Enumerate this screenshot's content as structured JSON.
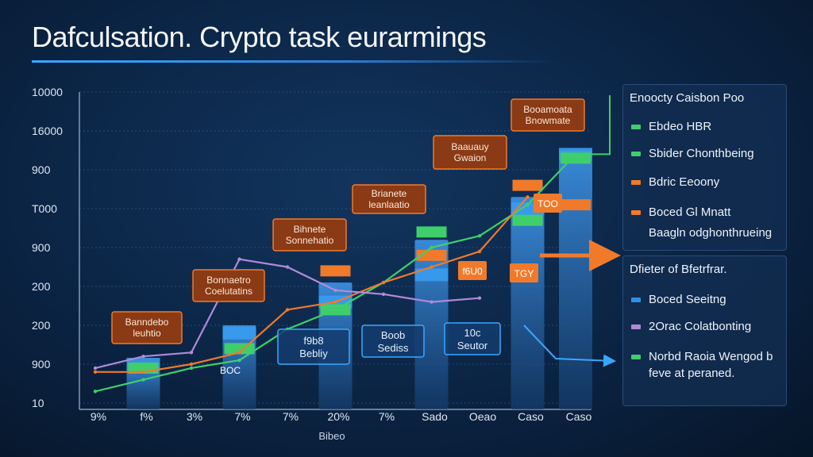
{
  "title": "Dafculsation. Crypto task eurarmings",
  "chart_data": {
    "type": "bar",
    "title": "Dafculsation. Crypto task eurarmings",
    "xlabel": "Bibeo",
    "ylabel": "",
    "y_tick_labels": [
      "10",
      "900",
      "200",
      "200",
      "900",
      "T000",
      "900",
      "16000",
      "10000"
    ],
    "categories": [
      "9%",
      "f%",
      "3%",
      "7%",
      "7%",
      "20%",
      "7%",
      "Sado",
      "Oeao",
      "Caso",
      "Caso"
    ],
    "bar_groups": [
      {
        "index": 1,
        "stack_top": 1.0,
        "blue_marker": 1.0,
        "green_marker": 0.9,
        "orange_marker": null
      },
      {
        "index": 3,
        "stack_top": 2.0,
        "blue_marker": 1.8,
        "green_marker": 1.4,
        "orange_marker": null
      },
      {
        "index": 5,
        "stack_top": 3.1,
        "blue_marker": 2.6,
        "green_marker": 2.4,
        "orange_marker": 3.4
      },
      {
        "index": 7,
        "stack_top": 4.2,
        "blue_marker": 3.3,
        "green_marker": 4.4,
        "orange_marker": 3.8
      },
      {
        "index": 9,
        "stack_top": 5.3,
        "blue_marker": 5.0,
        "green_marker": 4.7,
        "orange_marker": 5.6
      },
      {
        "index": 10,
        "stack_top": 6.5,
        "blue_marker": 6.4,
        "green_marker": 6.3,
        "orange_marker": 5.1
      }
    ],
    "series": [
      {
        "name": "Ebdeo HBR",
        "color": "#3fcf6a",
        "x": [
          0,
          1,
          2,
          3,
          4,
          5,
          6,
          7,
          8,
          9,
          10
        ],
        "y": [
          0.3,
          0.6,
          0.9,
          1.1,
          1.9,
          2.4,
          3.1,
          4.0,
          4.3,
          5.1,
          6.4
        ]
      },
      {
        "name": "Bdric Eeoony",
        "color": "#f07a2a",
        "x": [
          0,
          1,
          2,
          3,
          4,
          5,
          6,
          7,
          8,
          9
        ],
        "y": [
          0.8,
          0.8,
          1.0,
          1.3,
          2.4,
          2.6,
          3.1,
          3.5,
          3.9,
          5.3
        ]
      },
      {
        "name": "2Orac Colatbonting",
        "color": "#b08ad8",
        "x": [
          0,
          1,
          2,
          3,
          4,
          5,
          6,
          7,
          8
        ],
        "y": [
          0.9,
          1.2,
          1.3,
          3.7,
          3.5,
          2.9,
          2.8,
          2.6,
          2.7
        ]
      }
    ],
    "annotations": [
      {
        "text": "Banndebo leuhtio",
        "style": "orange"
      },
      {
        "text": "Bonnaetro Coelutatins",
        "style": "orange"
      },
      {
        "text": "Bihnete Sonnehatio",
        "style": "orange"
      },
      {
        "text": "Brianete leanlaatio",
        "style": "orange"
      },
      {
        "text": "Baauauy Gwaion",
        "style": "orange"
      },
      {
        "text": "Booamoata Bnowmate",
        "style": "orange"
      },
      {
        "text": "BOC",
        "style": "inline"
      },
      {
        "text": "f9b8 Bebliy",
        "style": "blue"
      },
      {
        "text": "Boob Sediss",
        "style": "blue"
      },
      {
        "text": "10c Seutor",
        "style": "blue"
      },
      {
        "text": "f6U0",
        "style": "orange-inline"
      },
      {
        "text": "TOO",
        "style": "orange-inline"
      },
      {
        "text": "TGY",
        "style": "orange-inline"
      }
    ],
    "grid": true,
    "legend_position": "right"
  },
  "legend_top": {
    "title": "Enoocty Caisbon Poo",
    "items": [
      {
        "label": "Ebdeo HBR",
        "color": "#3fcf6a"
      },
      {
        "label": "Sbider Chonthbeing",
        "color": "#3fcf6a"
      },
      {
        "label": "Bdric Eeoony",
        "color": "#f07a2a"
      },
      {
        "label": "Boced Gl Mnatt",
        "color": "#f07a2a"
      },
      {
        "label": "Baagln odghonthrueing",
        "color": ""
      }
    ]
  },
  "legend_bottom": {
    "title": "Dfieter of Bfetrfrar.",
    "items": [
      {
        "label": "Boced Seeitng",
        "color": "#2f8fe6"
      },
      {
        "label": "2Orac Colatbonting",
        "color": "#b08ad8"
      },
      {
        "label": "Norbd Raoia Wengod b feve at peraned.",
        "color": "#3fcf6a"
      }
    ]
  }
}
